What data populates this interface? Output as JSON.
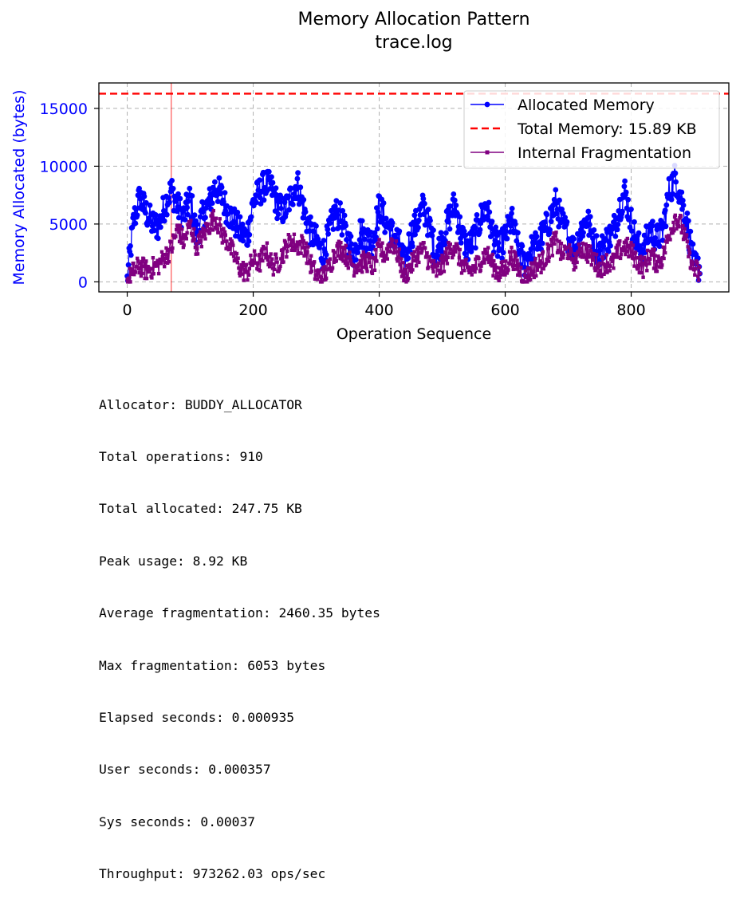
{
  "chart_data": {
    "type": "line",
    "title": "Memory Allocation Pattern",
    "subtitle": "trace.log",
    "xlabel": "Operation Sequence",
    "ylabel": "Memory Allocated (bytes)",
    "xlim": [
      -45,
      955
    ],
    "ylim": [
      -870,
      17200
    ],
    "x_ticks": [
      0,
      200,
      400,
      600,
      800
    ],
    "y_ticks": [
      0,
      5000,
      10000,
      15000
    ],
    "grid": true,
    "legend_position": "top-right",
    "n_points": 910,
    "vline_x": 70,
    "total_memory_line": {
      "name": "Total Memory: 15.89 KB",
      "y": 16272,
      "color": "#ff0000",
      "style": "dashed"
    },
    "series": [
      {
        "name": "Allocated Memory",
        "color": "#0000ff",
        "marker": "circle",
        "x_step": 10,
        "values": [
          100,
          5200,
          7400,
          6000,
          5000,
          4800,
          6700,
          8000,
          6500,
          5600,
          7300,
          4000,
          5800,
          6800,
          8300,
          7400,
          6000,
          5200,
          4300,
          3800,
          6900,
          7800,
          8500,
          8000,
          6400,
          6100,
          7400,
          8600,
          6300,
          4400,
          3600,
          2300,
          4100,
          6100,
          5400,
          3600,
          2400,
          4400,
          3700,
          3500,
          6600,
          5200,
          4200,
          3600,
          1500,
          4000,
          5200,
          6500,
          4700,
          2400,
          3600,
          5400,
          6800,
          4200,
          2800,
          3700,
          5300,
          6800,
          4100,
          2800,
          3800,
          5400,
          3000,
          1600,
          2700,
          3200,
          4100,
          5300,
          6800,
          5200,
          3900,
          2700,
          4500,
          5500,
          3500,
          2500,
          3600,
          4100,
          6200,
          7800,
          5200,
          3100,
          2800,
          4700,
          3700,
          4300,
          7800,
          9100,
          7100,
          4700,
          1300
        ]
      },
      {
        "name": "Internal Fragmentation",
        "color": "#800080",
        "marker": "square",
        "x_step": 10,
        "values": [
          0,
          900,
          1400,
          1000,
          1200,
          1500,
          2200,
          2900,
          4600,
          3400,
          5000,
          3100,
          3900,
          4900,
          5600,
          4200,
          3400,
          2200,
          1100,
          800,
          1900,
          1600,
          2800,
          1400,
          1700,
          2800,
          3600,
          3100,
          3300,
          1700,
          600,
          400,
          1200,
          2600,
          2900,
          2100,
          1400,
          1600,
          1800,
          1300,
          2800,
          2300,
          3600,
          2300,
          500,
          1300,
          2400,
          2800,
          1700,
          800,
          1400,
          2600,
          3200,
          1600,
          900,
          1100,
          1800,
          2500,
          1500,
          700,
          1100,
          2300,
          1200,
          400,
          900,
          1400,
          1800,
          2700,
          3600,
          2300,
          2800,
          1800,
          3000,
          2600,
          1900,
          1200,
          1700,
          1500,
          2600,
          3100,
          2600,
          1800,
          1200,
          2400,
          1700,
          2100,
          4100,
          5600,
          4800,
          2800,
          1000
        ]
      }
    ]
  },
  "stats": [
    "Allocator: BUDDY_ALLOCATOR",
    "Total operations: 910",
    "Total allocated: 247.75 KB",
    "Peak usage: 8.92 KB",
    "Average fragmentation: 2460.35 bytes",
    "Max fragmentation: 6053 bytes",
    "Elapsed seconds: 0.000935",
    "User seconds: 0.000357",
    "Sys seconds: 0.00037",
    "Throughput: 973262.03 ops/sec"
  ]
}
